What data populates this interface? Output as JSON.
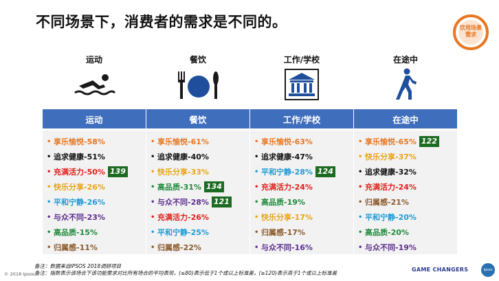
{
  "title": "不同场景下，消费者的需求是不同的。",
  "badge": {
    "line1": "饮用场景",
    "line2": "需求",
    "color": "#e87722"
  },
  "colors": {
    "header": "#3f6ebd",
    "tag_bg": "#1c6b22",
    "list_bg": "#f2f2f2"
  },
  "columns": [
    {
      "label": "运动",
      "icon": "swimmer-icon",
      "items": [
        {
          "text": "享乐愉悦-58%",
          "color": "#e87722"
        },
        {
          "text": "追求健康-51%",
          "color": "#111111"
        },
        {
          "text": "充满活力-50%",
          "color": "#e0201b",
          "tag": "139"
        },
        {
          "text": "快乐分享-26%",
          "color": "#e8a317"
        },
        {
          "text": "平和宁静-26%",
          "color": "#1e9ad6"
        },
        {
          "text": "与众不同-23%",
          "color": "#5b2d8e"
        },
        {
          "text": "高品质-15%",
          "color": "#1f8a3c"
        },
        {
          "text": "归属感-11%",
          "color": "#8b5a2b"
        }
      ]
    },
    {
      "label": "餐饮",
      "icon": "dining-icon",
      "items": [
        {
          "text": "享乐愉悦-61%",
          "color": "#e87722"
        },
        {
          "text": "追求健康-40%",
          "color": "#111111"
        },
        {
          "text": "快乐分享-33%",
          "color": "#e8a317"
        },
        {
          "text": "高品质-31%",
          "color": "#1f8a3c",
          "tag": "134"
        },
        {
          "text": "与众不同-28%",
          "color": "#5b2d8e",
          "tag": "121"
        },
        {
          "text": "充满活力-26%",
          "color": "#e0201b"
        },
        {
          "text": "平和宁静-25%",
          "color": "#1e9ad6"
        },
        {
          "text": "归属感-22%",
          "color": "#8b5a2b"
        }
      ]
    },
    {
      "label": "工作/学校",
      "icon": "school-building-icon",
      "items": [
        {
          "text": "享乐愉悦-63%",
          "color": "#e87722"
        },
        {
          "text": "追求健康-47%",
          "color": "#111111"
        },
        {
          "text": "平和宁静-28%",
          "color": "#1e9ad6",
          "tag": "124"
        },
        {
          "text": "充满活力-24%",
          "color": "#e0201b"
        },
        {
          "text": "高品质-19%",
          "color": "#1f8a3c"
        },
        {
          "text": "快乐分享-17%",
          "color": "#e8a317"
        },
        {
          "text": "归属感-17%",
          "color": "#8b5a2b"
        },
        {
          "text": "与众不同-16%",
          "color": "#5b2d8e"
        }
      ]
    },
    {
      "label": "在途中",
      "icon": "walker-icon",
      "items": [
        {
          "text": "享乐愉悦-65%",
          "color": "#e87722",
          "tag": "122"
        },
        {
          "text": "快乐分享-37%",
          "color": "#e8a317"
        },
        {
          "text": "追求健康-32%",
          "color": "#111111"
        },
        {
          "text": "充满活力-24%",
          "color": "#e0201b"
        },
        {
          "text": "归属感-21%",
          "color": "#8b5a2b"
        },
        {
          "text": "平和宁静-20%",
          "color": "#1e9ad6"
        },
        {
          "text": "高品质-20%",
          "color": "#1f8a3c"
        },
        {
          "text": "与众不同-19%",
          "color": "#5b2d8e"
        }
      ]
    }
  ],
  "notes": {
    "line1": "备注：数据来自IPSOS 2018调研项目",
    "line2": "备注：指数表示该场合下该功能需求对比所有场合的平均表现，(≤80)表示低于1个或以上标准差，(≥120)表示高于1个或以上标准差"
  },
  "footer": {
    "copyright": "© 2018 Ipsos.",
    "brand": "GAME CHANGERS",
    "logo": "Ipsos"
  }
}
